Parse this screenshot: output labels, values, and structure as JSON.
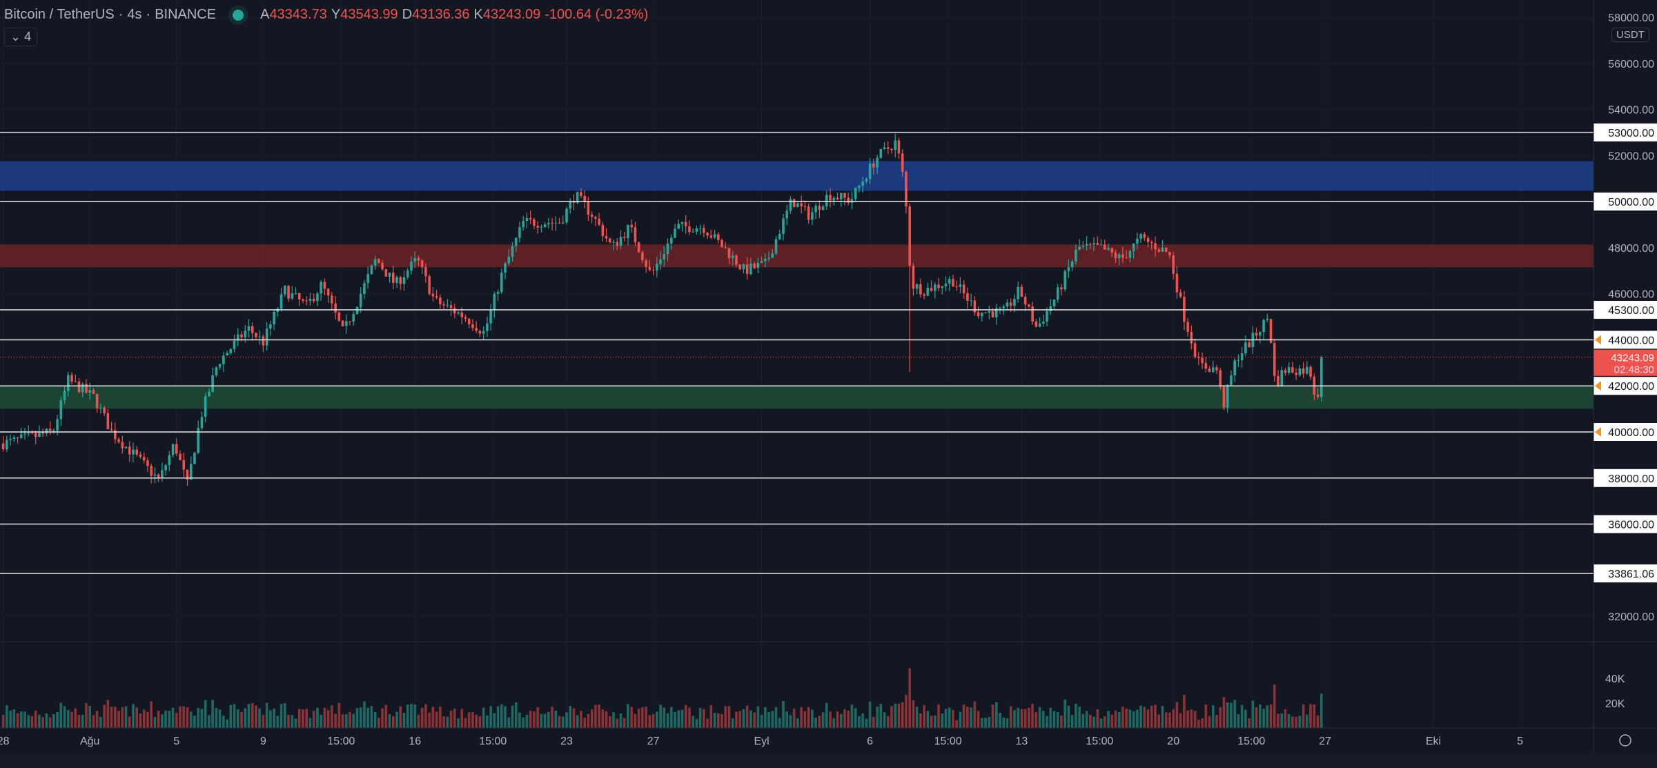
{
  "header": {
    "symbol": "Bitcoin / TetherUS",
    "interval": "4s",
    "exchange": "BINANCE",
    "ohlc": [
      {
        "k": "A",
        "v": "43343.73"
      },
      {
        "k": "Y",
        "v": "43543.99"
      },
      {
        "k": "D",
        "v": "43136.36"
      },
      {
        "k": "K",
        "v": "43243.09"
      }
    ],
    "change": "-100.64 (-0.23%)",
    "indicators_toggle": "4"
  },
  "currency_badge": "USDT",
  "price_axis": {
    "ticks": [
      "58000.00",
      "56000.00",
      "54000.00",
      "52000.00",
      "48000.00",
      "46000.00",
      "32000.00"
    ],
    "tick_values": [
      58000,
      56000,
      54000,
      52000,
      48000,
      46000,
      32000
    ],
    "volume_ticks": [
      "40K",
      "20K"
    ],
    "volume_tick_values": [
      40000,
      20000
    ]
  },
  "horizontal_lines": [
    {
      "price": 53000,
      "label": "53000.00",
      "alert": false
    },
    {
      "price": 50000,
      "label": "50000.00",
      "alert": false
    },
    {
      "price": 45300,
      "label": "45300.00",
      "alert": false
    },
    {
      "price": 44000,
      "label": "44000.00",
      "alert": true
    },
    {
      "price": 42000,
      "label": "42000.00",
      "alert": true
    },
    {
      "price": 40000,
      "label": "40000.00",
      "alert": true
    },
    {
      "price": 38000,
      "label": "38000.00",
      "alert": false
    },
    {
      "price": 36000,
      "label": "36000.00",
      "alert": false
    },
    {
      "price": 33861.06,
      "label": "33861.06",
      "alert": false
    }
  ],
  "zones": [
    {
      "from": 50480,
      "to": 51740,
      "color": "#1e3f8f"
    },
    {
      "from": 47160,
      "to": 48120,
      "color": "#6b2326"
    },
    {
      "from": 41020,
      "to": 42000,
      "color": "#1f4d35"
    }
  ],
  "last_price": {
    "price": 43243.09,
    "label": "43243.09",
    "countdown": "02:48:30"
  },
  "time_axis": [
    {
      "d": 0,
      "t": "28"
    },
    {
      "d": 4,
      "t": "Ağu"
    },
    {
      "d": 8,
      "t": "5"
    },
    {
      "d": 12,
      "t": "9"
    },
    {
      "d": 15.6,
      "t": "15:00"
    },
    {
      "d": 19,
      "t": "16"
    },
    {
      "d": 22.6,
      "t": "15:00"
    },
    {
      "d": 26,
      "t": "23"
    },
    {
      "d": 30,
      "t": "27"
    },
    {
      "d": 35,
      "t": "Eyl"
    },
    {
      "d": 40,
      "t": "6"
    },
    {
      "d": 43.6,
      "t": "15:00"
    },
    {
      "d": 47,
      "t": "13"
    },
    {
      "d": 50.6,
      "t": "15:00"
    },
    {
      "d": 54,
      "t": "20"
    },
    {
      "d": 57.6,
      "t": "15:00"
    },
    {
      "d": 61,
      "t": "27"
    },
    {
      "d": 66,
      "t": "Eki"
    },
    {
      "d": 70,
      "t": "5"
    }
  ],
  "colors": {
    "up": "#26a69a",
    "down": "#ef5350",
    "bg": "#131722",
    "grid": "#1c2030"
  },
  "chart_data": {
    "type": "candlestick",
    "candles_per_day": 6,
    "path": [
      [
        0,
        39500
      ],
      [
        2.3,
        40000
      ],
      [
        3,
        42250
      ],
      [
        4.2,
        41500
      ],
      [
        5,
        40000
      ],
      [
        7.2,
        37900
      ],
      [
        7.9,
        39500
      ],
      [
        8.5,
        37700
      ],
      [
        9.1,
        40600
      ],
      [
        9.9,
        43000
      ],
      [
        11.3,
        44500
      ],
      [
        12,
        43900
      ],
      [
        13,
        46150
      ],
      [
        14,
        45460
      ],
      [
        14.7,
        46400
      ],
      [
        15.7,
        44300
      ],
      [
        17.2,
        47500
      ],
      [
        18.1,
        46400
      ],
      [
        19.1,
        47500
      ],
      [
        19.9,
        45700
      ],
      [
        21.3,
        45000
      ],
      [
        22.2,
        44300
      ],
      [
        23,
        46800
      ],
      [
        24,
        49100
      ],
      [
        25.7,
        49100
      ],
      [
        26.4,
        50300
      ],
      [
        27.2,
        49400
      ],
      [
        28.1,
        48000
      ],
      [
        28.9,
        48900
      ],
      [
        29.9,
        46800
      ],
      [
        31.1,
        48900
      ],
      [
        32.3,
        48900
      ],
      [
        33.5,
        47750
      ],
      [
        34.2,
        47000
      ],
      [
        35.2,
        47300
      ],
      [
        36.4,
        50050
      ],
      [
        37.2,
        49400
      ],
      [
        38.1,
        50300
      ],
      [
        39.1,
        50050
      ],
      [
        40.3,
        51900
      ],
      [
        41.2,
        52600
      ],
      [
        41.6,
        50700
      ],
      [
        41.9,
        46400
      ],
      [
        42.5,
        46150
      ],
      [
        43.8,
        46600
      ],
      [
        45,
        45200
      ],
      [
        46.2,
        45200
      ],
      [
        46.9,
        46150
      ],
      [
        47.7,
        44500
      ],
      [
        48.6,
        45900
      ],
      [
        49.6,
        48000
      ],
      [
        50.6,
        48000
      ],
      [
        51.6,
        47500
      ],
      [
        52.5,
        48400
      ],
      [
        53.8,
        47750
      ],
      [
        54.5,
        45000
      ],
      [
        55.2,
        42900
      ],
      [
        56,
        42700
      ],
      [
        56.3,
        41100
      ],
      [
        56.9,
        43200
      ],
      [
        57.7,
        44100
      ],
      [
        58.4,
        45000
      ],
      [
        58.7,
        42000
      ],
      [
        59.1,
        42700
      ],
      [
        60.3,
        42700
      ],
      [
        60.6,
        41300
      ],
      [
        60.9,
        43243.09
      ]
    ]
  }
}
